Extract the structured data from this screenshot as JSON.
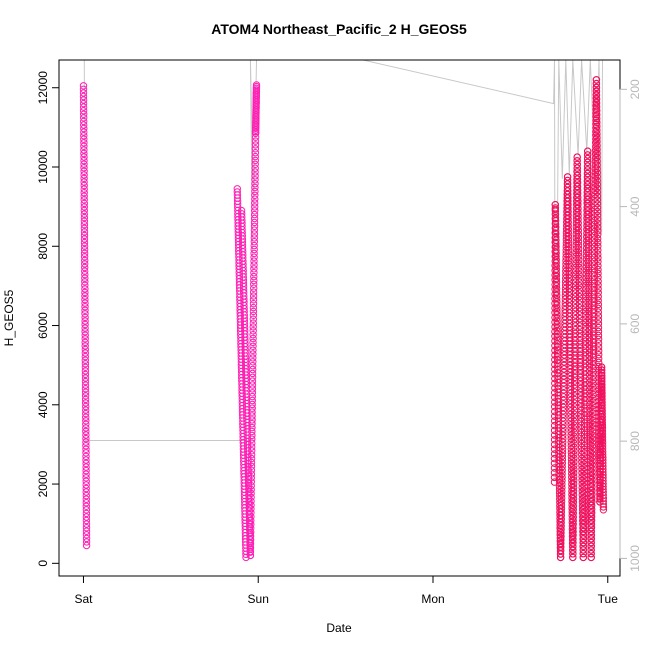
{
  "chart_data": {
    "type": "scatter",
    "title": "ATOM4 Northeast_Pacific_2 H_GEOS5",
    "xlabel": "Date",
    "ylabel": "H_GEOS5",
    "x_ticks": [
      "Sat",
      "Sun",
      "Mon",
      "Tue"
    ],
    "x_tick_days": [
      0,
      1,
      2,
      3
    ],
    "xlim_days": [
      -0.14,
      3.07
    ],
    "ylim": [
      -320,
      12700
    ],
    "y_ticks": [
      0,
      2000,
      4000,
      6000,
      8000,
      10000,
      12000
    ],
    "y2_label": "",
    "y2_ticks": [
      200,
      400,
      600,
      800,
      1000
    ],
    "y2_reversed": true,
    "y2_value_at_y_min": 1030,
    "y2_value_at_y_max": 150,
    "grid": false,
    "background_line_color": "#c8c8c8",
    "series": [
      {
        "color": "#ff1fb4",
        "marker": "open-circle",
        "segments": [
          {
            "t_start": 0.0,
            "t_end": 0.018,
            "y_from": 12050,
            "y_to": 450,
            "n": 130
          },
          {
            "t_start": 0.88,
            "t_end": 0.93,
            "y_from": 9450,
            "y_to": 150,
            "n": 120
          },
          {
            "t_start": 0.905,
            "t_end": 0.955,
            "y_from": 8900,
            "y_to": 200,
            "n": 110
          },
          {
            "t_start": 0.955,
            "t_end": 0.985,
            "y_from": 200,
            "y_to": 10850,
            "n": 110
          },
          {
            "t_start": 0.985,
            "t_end": 0.99,
            "y_from": 10850,
            "y_to": 12070,
            "n": 30
          }
        ]
      },
      {
        "color": "#f0125e",
        "marker": "open-circle",
        "segments": [
          {
            "t_start": 2.695,
            "t_end": 2.7,
            "y_from": 2050,
            "y_to": 9050,
            "n": 60
          },
          {
            "t_start": 2.7,
            "t_end": 2.73,
            "y_from": 9050,
            "y_to": 150,
            "n": 110
          },
          {
            "t_start": 2.73,
            "t_end": 2.77,
            "y_from": 150,
            "y_to": 9750,
            "n": 110
          },
          {
            "t_start": 2.77,
            "t_end": 2.8,
            "y_from": 9750,
            "y_to": 150,
            "n": 110
          },
          {
            "t_start": 2.8,
            "t_end": 2.825,
            "y_from": 150,
            "y_to": 10250,
            "n": 110
          },
          {
            "t_start": 2.825,
            "t_end": 2.86,
            "y_from": 10250,
            "y_to": 150,
            "n": 110
          },
          {
            "t_start": 2.86,
            "t_end": 2.885,
            "y_from": 150,
            "y_to": 10400,
            "n": 110
          },
          {
            "t_start": 2.885,
            "t_end": 2.905,
            "y_from": 10400,
            "y_to": 150,
            "n": 110
          },
          {
            "t_start": 2.905,
            "t_end": 2.935,
            "y_from": 150,
            "y_to": 12200,
            "n": 130
          },
          {
            "t_start": 2.935,
            "t_end": 2.955,
            "y_from": 12200,
            "y_to": 1550,
            "n": 110
          },
          {
            "t_start": 2.955,
            "t_end": 2.965,
            "y_from": 1550,
            "y_to": 4950,
            "n": 50
          },
          {
            "t_start": 2.965,
            "t_end": 2.975,
            "y_from": 4950,
            "y_to": 1350,
            "n": 50
          }
        ]
      }
    ],
    "background_line": [
      [
        0.0,
        12700
      ],
      [
        0.005,
        12700
      ],
      [
        0.01,
        3100
      ],
      [
        0.98,
        3100
      ],
      [
        0.955,
        12700
      ],
      [
        0.975,
        9000
      ],
      [
        0.99,
        12700
      ],
      [
        1.6,
        12700
      ],
      [
        2.69,
        11600
      ],
      [
        2.695,
        12700
      ],
      [
        2.7,
        2100
      ],
      [
        2.72,
        12700
      ],
      [
        2.74,
        9700
      ],
      [
        2.76,
        12700
      ],
      [
        2.78,
        9800
      ],
      [
        2.8,
        12700
      ],
      [
        2.83,
        10300
      ],
      [
        2.85,
        12700
      ],
      [
        2.88,
        10400
      ],
      [
        2.9,
        12700
      ],
      [
        2.93,
        9500
      ],
      [
        2.95,
        12700
      ],
      [
        2.965,
        8300
      ],
      [
        2.97,
        12700
      ]
    ]
  }
}
